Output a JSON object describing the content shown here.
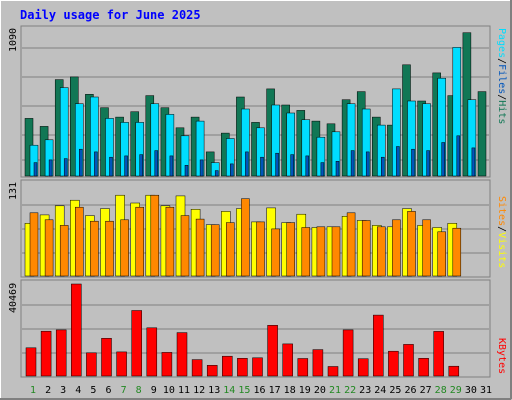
{
  "title": "Daily usage for June 2025",
  "colors": {
    "background": "#c0c0c0",
    "title": "#0000ff",
    "hits": "#117755",
    "files": "#00ddff",
    "pages": "#0055bb",
    "visits": "#ffff00",
    "sites": "#ff8800",
    "kbytes": "#ff0000",
    "weekend_label": "#228822",
    "weekday_label": "#000000"
  },
  "chart_data": [
    {
      "type": "bar",
      "name": "hits-files-pages",
      "categories": [
        "1",
        "2",
        "3",
        "4",
        "5",
        "6",
        "7",
        "8",
        "9",
        "10",
        "11",
        "12",
        "13",
        "14",
        "15",
        "16",
        "17",
        "18",
        "19",
        "20",
        "21",
        "22",
        "23",
        "24",
        "25",
        "26",
        "27",
        "28",
        "29",
        "30",
        "31"
      ],
      "ymax_label": "1090",
      "ylim": [
        0,
        1090
      ],
      "legend": [
        "Pages",
        "/",
        "Files",
        "/",
        "Hits"
      ],
      "series": [
        {
          "name": "Hits",
          "values": [
            430,
            370,
            720,
            740,
            610,
            510,
            440,
            480,
            600,
            510,
            360,
            440,
            180,
            320,
            590,
            400,
            650,
            530,
            490,
            410,
            390,
            570,
            630,
            440,
            380,
            830,
            560,
            770,
            600,
            1070,
            630
          ]
        },
        {
          "name": "Files",
          "values": [
            230,
            270,
            660,
            540,
            590,
            430,
            400,
            400,
            540,
            460,
            300,
            410,
            100,
            280,
            500,
            360,
            530,
            470,
            420,
            290,
            330,
            540,
            500,
            380,
            650,
            560,
            540,
            730,
            960,
            570,
            0
          ]
        },
        {
          "name": "Pages",
          "values": [
            100,
            120,
            130,
            200,
            180,
            140,
            150,
            160,
            190,
            150,
            80,
            120,
            40,
            90,
            180,
            140,
            170,
            160,
            150,
            100,
            110,
            190,
            180,
            140,
            220,
            200,
            190,
            250,
            300,
            210,
            0
          ]
        }
      ]
    },
    {
      "type": "bar",
      "name": "visits-sites",
      "categories": [
        "1",
        "2",
        "3",
        "4",
        "5",
        "6",
        "7",
        "8",
        "9",
        "10",
        "11",
        "12",
        "13",
        "14",
        "15",
        "16",
        "17",
        "18",
        "19",
        "20",
        "21",
        "22",
        "23",
        "24",
        "25",
        "26",
        "27",
        "28",
        "29",
        "30",
        "31"
      ],
      "ymax_label": "131",
      "ylim": [
        0,
        131
      ],
      "legend": [
        "Sites",
        "/",
        "Visits"
      ],
      "series": [
        {
          "name": "Visits",
          "values": [
            75,
            87,
            100,
            108,
            86,
            96,
            115,
            104,
            115,
            100,
            114,
            95,
            73,
            92,
            96,
            77,
            97,
            76,
            88,
            69,
            70,
            85,
            79,
            72,
            70,
            96,
            72,
            69,
            75,
            0,
            0
          ]
        },
        {
          "name": "Sites",
          "values": [
            90,
            80,
            72,
            98,
            78,
            78,
            80,
            98,
            115,
            98,
            86,
            81,
            73,
            76,
            110,
            77,
            67,
            76,
            69,
            70,
            70,
            90,
            79,
            70,
            80,
            92,
            80,
            63,
            68,
            0,
            0
          ]
        }
      ]
    },
    {
      "type": "bar",
      "name": "kbytes",
      "categories": [
        "1",
        "2",
        "3",
        "4",
        "5",
        "6",
        "7",
        "8",
        "9",
        "10",
        "11",
        "12",
        "13",
        "14",
        "15",
        "16",
        "17",
        "18",
        "19",
        "20",
        "21",
        "22",
        "23",
        "24",
        "25",
        "26",
        "27",
        "28",
        "29",
        "30",
        "31"
      ],
      "ymax_label": "40469",
      "ylim": [
        0,
        40469
      ],
      "legend": [
        "KBytes"
      ],
      "series": [
        {
          "name": "KBytes",
          "values": [
            12400,
            19700,
            20300,
            40469,
            10200,
            16600,
            10600,
            28800,
            21200,
            10400,
            19100,
            7200,
            4700,
            8700,
            7800,
            8000,
            22300,
            14100,
            7700,
            11600,
            4200,
            20300,
            7600,
            26800,
            10900,
            13900,
            7800,
            19600,
            4300,
            0,
            0
          ]
        }
      ]
    }
  ]
}
